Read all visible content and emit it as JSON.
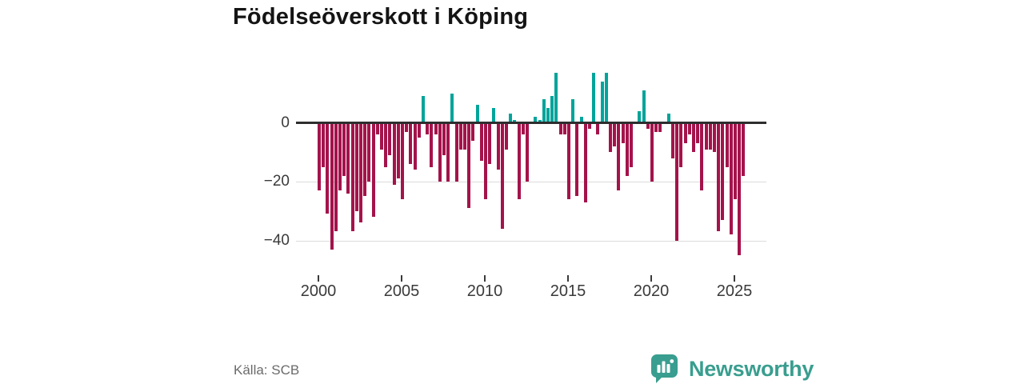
{
  "title": "Födelseöverskott i Köping",
  "source": "Källa: SCB",
  "brand": {
    "name": "Newsworthy",
    "color": "#399E8F"
  },
  "chart_data": {
    "type": "bar",
    "title": "Födelseöverskott i Köping",
    "x_start": "2000-Q1",
    "frequency": "quarterly",
    "values": [
      -23,
      -15,
      -31,
      -43,
      -37,
      -23,
      -18,
      -24,
      -37,
      -30,
      -34,
      -25,
      -20,
      -32,
      -4,
      -9,
      -15,
      -11,
      -21,
      -19,
      -26,
      -3,
      -14,
      -16,
      -5,
      9,
      -4,
      -15,
      -4,
      -20,
      -11,
      -20,
      10,
      -20,
      -9,
      -9,
      -29,
      -6,
      6,
      -13,
      -26,
      -14,
      5,
      -16,
      -36,
      -9,
      3,
      1,
      -26,
      -4,
      -20,
      0,
      2,
      1,
      8,
      5,
      9,
      17,
      -4,
      -4,
      -26,
      8,
      -25,
      2,
      -27,
      -2,
      17,
      -4,
      14,
      17,
      -10,
      -8,
      -23,
      -7,
      -18,
      -15,
      0,
      4,
      11,
      -2,
      -20,
      -3,
      -3,
      0,
      3,
      -12,
      -40,
      -15,
      -7,
      -4,
      -10,
      -7,
      -23,
      -9,
      -9,
      -10,
      -37,
      -33,
      -15,
      -38,
      -26,
      -45,
      -18
    ],
    "x_ticks": [
      2000,
      2005,
      2010,
      2015,
      2020,
      2025
    ],
    "y_ticks": [
      0,
      -20,
      -40
    ],
    "y_tick_labels": [
      "0",
      "−20",
      "−40"
    ],
    "ylim": [
      -47,
      20
    ],
    "grid": "horizontal",
    "legend": "none",
    "colors": {
      "positive": "#00A49B",
      "negative": "#A4134B",
      "axis": "#2E2E2E",
      "gridline": "#DCDCDC"
    }
  }
}
